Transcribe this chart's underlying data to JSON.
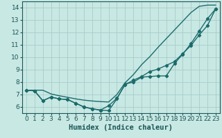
{
  "xlabel": "Humidex (Indice chaleur)",
  "xlim": [
    -0.5,
    23.5
  ],
  "ylim": [
    5.5,
    14.5
  ],
  "xticks": [
    0,
    1,
    2,
    3,
    4,
    5,
    6,
    7,
    8,
    9,
    10,
    11,
    12,
    13,
    14,
    15,
    16,
    17,
    18,
    19,
    20,
    21,
    22,
    23
  ],
  "yticks": [
    6,
    7,
    8,
    9,
    10,
    11,
    12,
    13,
    14
  ],
  "bg_color": "#c8e8e4",
  "grid_color": "#a8ccc8",
  "line_color": "#1a6b6b",
  "line1_x": [
    0,
    1,
    2,
    3,
    4,
    5,
    6,
    7,
    8,
    9,
    10,
    11,
    12,
    13,
    14,
    15,
    16,
    17,
    18,
    19,
    20,
    21,
    22,
    23
  ],
  "line1_y": [
    7.35,
    7.35,
    7.35,
    7.05,
    6.9,
    6.78,
    6.65,
    6.55,
    6.48,
    6.43,
    6.4,
    7.0,
    7.95,
    8.6,
    9.4,
    10.05,
    10.8,
    11.5,
    12.2,
    12.9,
    13.6,
    14.1,
    14.2,
    14.2
  ],
  "line2_x": [
    0,
    1,
    2,
    3,
    4,
    5,
    6,
    7,
    8,
    9,
    10,
    11,
    12,
    13,
    14,
    15,
    16,
    17,
    18,
    19,
    20,
    21,
    22,
    23
  ],
  "line2_y": [
    7.35,
    7.3,
    6.5,
    6.8,
    6.65,
    6.6,
    6.3,
    6.0,
    5.85,
    5.75,
    5.7,
    6.65,
    7.85,
    8.0,
    8.4,
    8.45,
    8.5,
    8.5,
    9.5,
    10.25,
    11.1,
    12.1,
    13.1,
    13.9
  ],
  "line3_x": [
    0,
    1,
    2,
    3,
    4,
    5,
    6,
    7,
    8,
    9,
    10,
    11,
    12,
    13,
    14,
    15,
    16,
    17,
    18,
    19,
    20,
    21,
    22,
    23
  ],
  "line3_y": [
    7.35,
    7.3,
    6.5,
    6.8,
    6.65,
    6.6,
    6.3,
    6.0,
    5.85,
    5.75,
    6.1,
    6.7,
    7.8,
    8.15,
    8.45,
    8.85,
    9.05,
    9.35,
    9.65,
    10.3,
    10.95,
    11.8,
    12.55,
    13.9
  ],
  "tick_fontsize": 6.5,
  "label_fontsize": 7.5,
  "linewidth": 1.0,
  "marker": "D",
  "markersize": 2.2
}
